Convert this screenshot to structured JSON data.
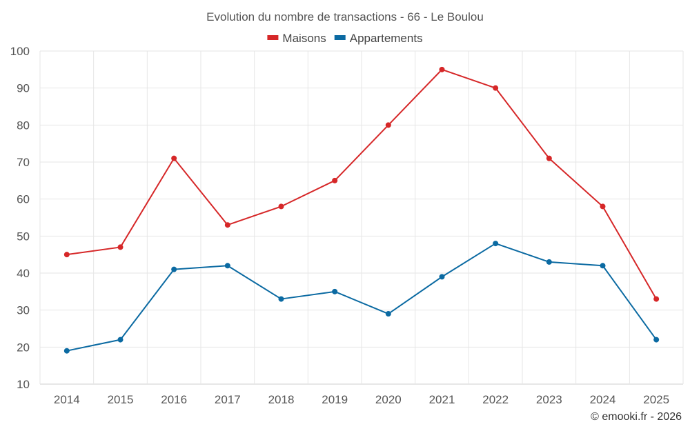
{
  "chart_data": {
    "type": "line",
    "title": "Evolution du nombre de transactions - 66 - Le Boulou",
    "categories": [
      "2014",
      "2015",
      "2016",
      "2017",
      "2018",
      "2019",
      "2020",
      "2021",
      "2022",
      "2023",
      "2024",
      "2025"
    ],
    "series": [
      {
        "name": "Maisons",
        "color": "#d62728",
        "values": [
          45,
          47,
          71,
          53,
          58,
          65,
          80,
          95,
          90,
          71,
          58,
          33
        ]
      },
      {
        "name": "Appartements",
        "color": "#0b6aa2",
        "values": [
          19,
          22,
          41,
          42,
          33,
          35,
          29,
          39,
          48,
          43,
          42,
          22
        ]
      }
    ],
    "yticks": [
      10,
      20,
      30,
      40,
      50,
      60,
      70,
      80,
      90,
      100
    ],
    "ylim": [
      10,
      100
    ],
    "xlabel": "",
    "ylabel": "",
    "grid": true,
    "legend_position": "top-center"
  },
  "credit": "© emooki.fr - 2026"
}
